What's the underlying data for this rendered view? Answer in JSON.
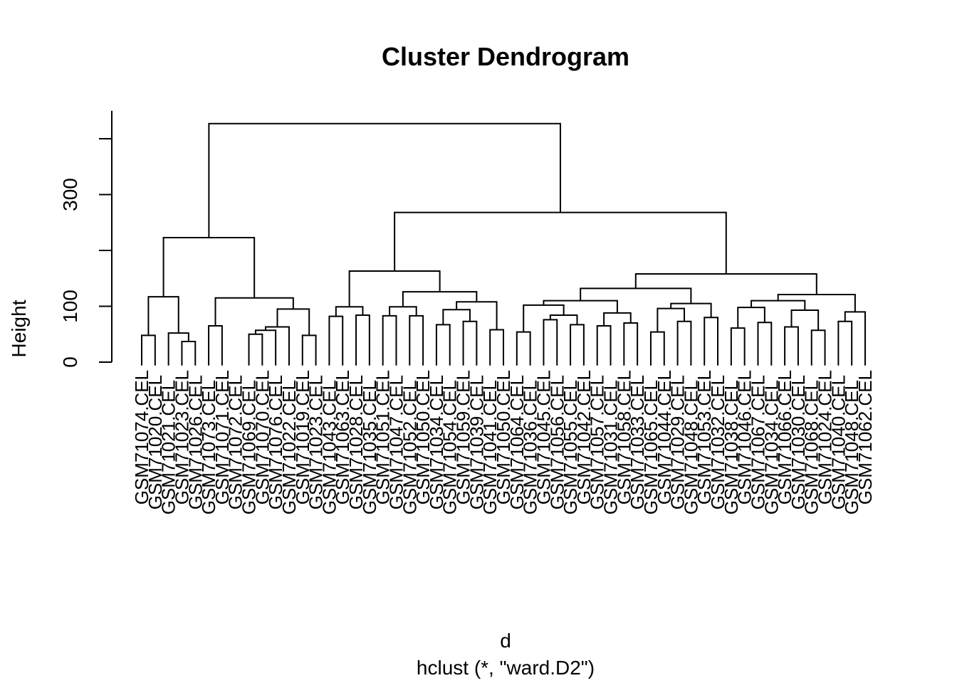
{
  "chart_data": {
    "type": "dendrogram",
    "title": "Cluster Dendrogram",
    "xlabel": "d",
    "sub": "hclust (*, \"ward.D2\")",
    "ylabel": "Height",
    "yticks": [
      0,
      100,
      200,
      300,
      400
    ],
    "ytick_labels": [
      "0",
      "100",
      "",
      "300",
      ""
    ],
    "ylim": [
      0,
      450
    ],
    "leaves": [
      "GSM71074.CEL",
      "GSM71020.CEL",
      "GSM71021.CEL",
      "GSM71023.CEL",
      "GSM71026.CEL",
      "GSM71073.CEL",
      "GSM71071.CEL",
      "GSM71072.CEL",
      "GSM71069.CEL",
      "GSM71070.CEL",
      "GSM71076.CEL",
      "GSM71022.CEL",
      "GSM71019.CEL",
      "GSM71023.CEL",
      "GSM71043.CEL",
      "GSM71063.CEL",
      "GSM71028.CEL",
      "GSM71035.CEL",
      "GSM71051.CEL",
      "GSM71047.CEL",
      "GSM71052.CEL",
      "GSM71050.CEL",
      "GSM71034.CEL",
      "GSM71054.CEL",
      "GSM71059.CEL",
      "GSM71039.CEL",
      "GSM71041.CEL",
      "GSM71050.CEL",
      "GSM71064.CEL",
      "GSM71036.CEL",
      "GSM71045.CEL",
      "GSM71056.CEL",
      "GSM71055.CEL",
      "GSM71042.CEL",
      "GSM71057.CEL",
      "GSM71031.CEL",
      "GSM71058.CEL",
      "GSM71033.CEL",
      "GSM71065.CEL",
      "GSM71044.CEL",
      "GSM71029.CEL",
      "GSM71048.CEL",
      "GSM71053.CEL",
      "GSM71032.CEL",
      "GSM71038.CEL",
      "GSM71046.CEL",
      "GSM71067.CEL",
      "GSM71034.CEL",
      "GSM71066.CEL",
      "GSM71030.CEL",
      "GSM71068.CEL",
      "GSM71024.CEL",
      "GSM71040.CEL",
      "GSM71048.CEL",
      "GSM71062.CEL"
    ],
    "merges": [
      [
        -1,
        -2,
        48
      ],
      [
        -4,
        -5,
        37
      ],
      [
        -3,
        2,
        52
      ],
      [
        -6,
        -7,
        65
      ],
      [
        -9,
        -10,
        50
      ],
      [
        -11,
        5,
        57
      ],
      [
        -12,
        6,
        63
      ],
      [
        -13,
        -14,
        48
      ],
      [
        7,
        8,
        95
      ],
      [
        4,
        9,
        115
      ],
      [
        1,
        3,
        117
      ],
      [
        10,
        11,
        223
      ],
      [
        -15,
        -16,
        82
      ],
      [
        -17,
        -18,
        84
      ],
      [
        13,
        14,
        99
      ],
      [
        -19,
        -20,
        83
      ],
      [
        -21,
        -22,
        83
      ],
      [
        16,
        17,
        99
      ],
      [
        -23,
        -24,
        67
      ],
      [
        -25,
        -26,
        73
      ],
      [
        19,
        20,
        94
      ],
      [
        -27,
        -28,
        58
      ],
      [
        21,
        22,
        108
      ],
      [
        18,
        23,
        126
      ],
      [
        15,
        24,
        163
      ],
      [
        -29,
        -30,
        54
      ],
      [
        -31,
        -32,
        76
      ],
      [
        -33,
        -34,
        67
      ],
      [
        27,
        28,
        84
      ],
      [
        26,
        29,
        102
      ],
      [
        -35,
        -36,
        65
      ],
      [
        -37,
        -38,
        70
      ],
      [
        31,
        32,
        88
      ],
      [
        30,
        33,
        110
      ],
      [
        -39,
        -40,
        54
      ],
      [
        -41,
        -42,
        73
      ],
      [
        35,
        36,
        96
      ],
      [
        -43,
        -44,
        80
      ],
      [
        37,
        38,
        105
      ],
      [
        34,
        39,
        132
      ],
      [
        -45,
        -46,
        61
      ],
      [
        -47,
        -48,
        71
      ],
      [
        41,
        42,
        98
      ],
      [
        -49,
        -50,
        63
      ],
      [
        -51,
        -52,
        57
      ],
      [
        44,
        45,
        93
      ],
      [
        43,
        46,
        110
      ],
      [
        -53,
        -54,
        73
      ],
      [
        -55,
        48,
        90
      ],
      [
        47,
        49,
        121
      ],
      [
        40,
        50,
        158
      ],
      [
        25,
        51,
        268
      ],
      [
        12,
        52,
        427
      ]
    ]
  }
}
